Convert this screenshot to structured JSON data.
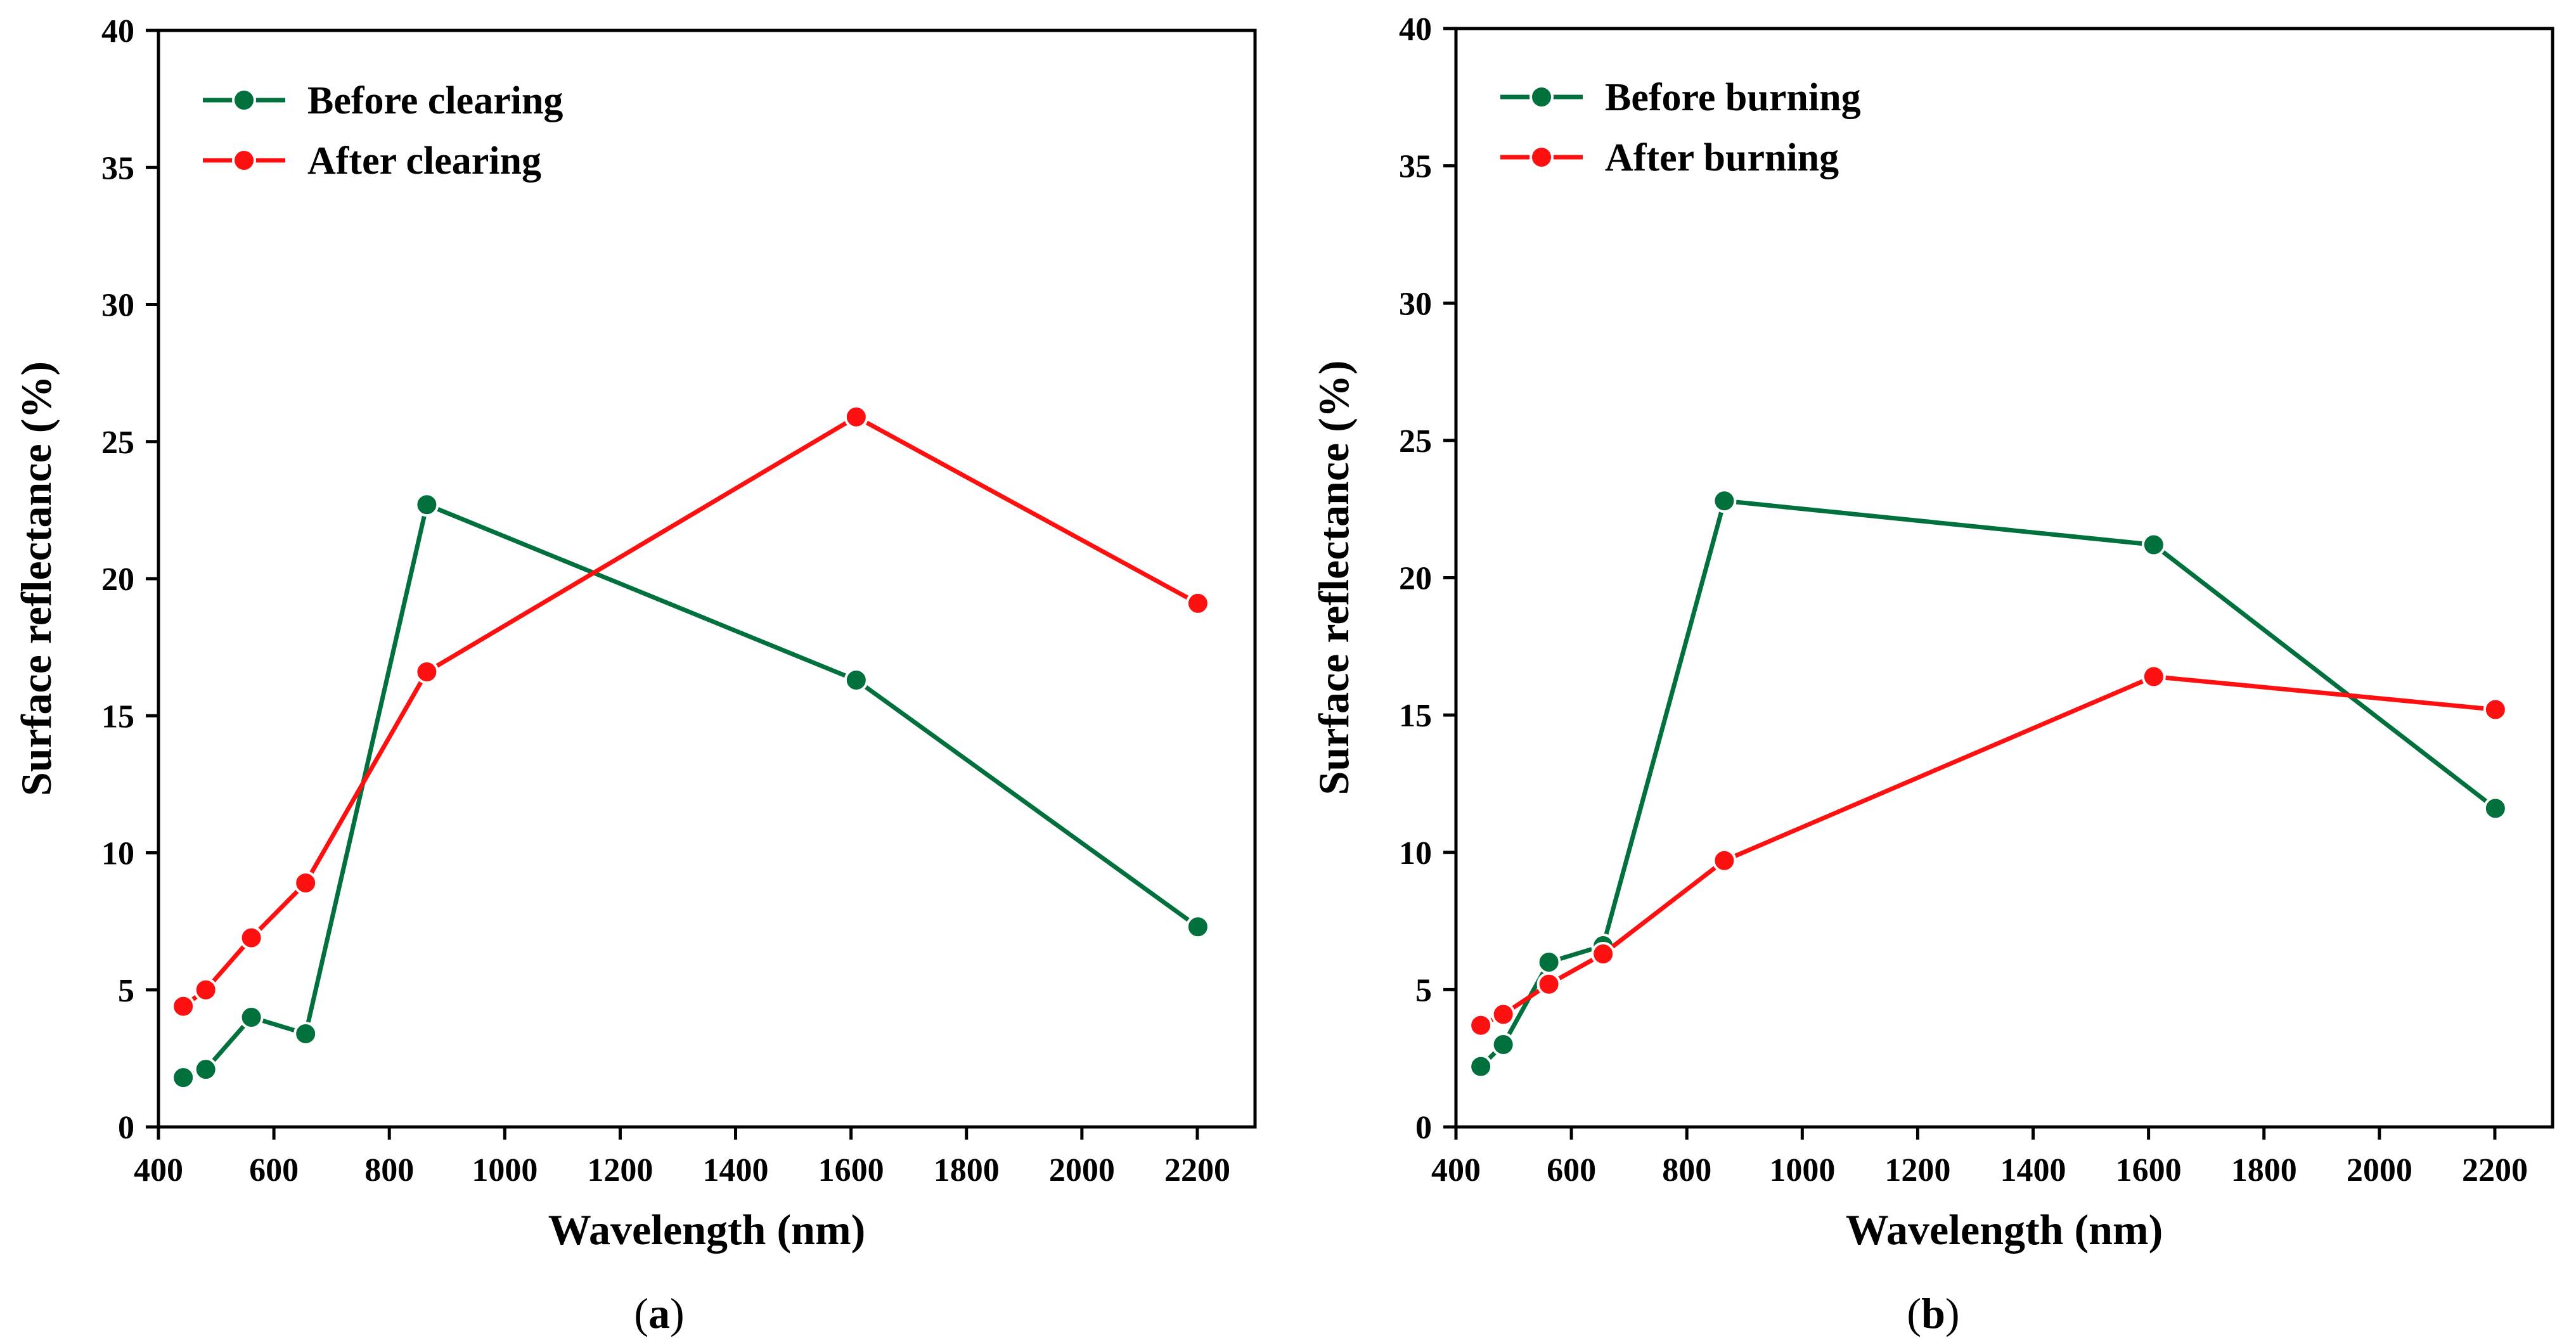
{
  "chart_data": [
    {
      "type": "line",
      "panel_label": "(a)",
      "panel_letter": "a",
      "xlabel": "Wavelength (nm)",
      "ylabel": "Surface reflectance (%)",
      "xlim": [
        400,
        2300
      ],
      "ylim": [
        0,
        40
      ],
      "xticks": [
        400,
        600,
        800,
        1000,
        1200,
        1400,
        1600,
        1800,
        2000,
        2200
      ],
      "yticks": [
        0,
        5,
        10,
        15,
        20,
        25,
        30,
        35,
        40
      ],
      "legend_position": "top-left",
      "x": [
        443,
        482,
        561,
        655,
        865,
        1609,
        2201
      ],
      "series": [
        {
          "name": "Before clearing",
          "color": "#00703c",
          "values": [
            1.8,
            2.1,
            4.0,
            3.4,
            22.7,
            16.3,
            7.3
          ]
        },
        {
          "name": "After clearing",
          "color": "#ff1010",
          "values": [
            4.4,
            5.0,
            6.9,
            8.9,
            16.6,
            25.9,
            19.1
          ]
        }
      ]
    },
    {
      "type": "line",
      "panel_label": "(b)",
      "panel_letter": "b",
      "xlabel": "Wavelength (nm)",
      "ylabel": "Surface reflectance (%)",
      "xlim": [
        400,
        2300
      ],
      "ylim": [
        0,
        40
      ],
      "xticks": [
        400,
        600,
        800,
        1000,
        1200,
        1400,
        1600,
        1800,
        2000,
        2200
      ],
      "yticks": [
        0,
        5,
        10,
        15,
        20,
        25,
        30,
        35,
        40
      ],
      "legend_position": "top-left",
      "x": [
        443,
        482,
        561,
        655,
        865,
        1609,
        2201
      ],
      "series": [
        {
          "name": "Before burning",
          "color": "#00703c",
          "values": [
            2.2,
            3.0,
            6.0,
            6.6,
            22.8,
            21.2,
            11.6
          ]
        },
        {
          "name": "After burning",
          "color": "#ff1010",
          "values": [
            3.7,
            4.1,
            5.2,
            6.3,
            9.7,
            16.4,
            15.2
          ]
        }
      ]
    }
  ]
}
